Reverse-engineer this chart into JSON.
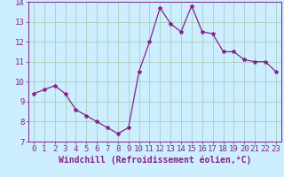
{
  "hours": [
    0,
    1,
    2,
    3,
    4,
    5,
    6,
    7,
    8,
    9,
    10,
    11,
    12,
    13,
    14,
    15,
    16,
    17,
    18,
    19,
    20,
    21,
    22,
    23
  ],
  "values": [
    9.4,
    9.6,
    9.8,
    9.4,
    8.6,
    8.3,
    8.0,
    7.7,
    7.4,
    7.7,
    10.5,
    12.0,
    13.7,
    12.9,
    12.5,
    13.8,
    12.5,
    12.4,
    11.5,
    11.5,
    11.1,
    11.0,
    11.0,
    10.5
  ],
  "line_color": "#882288",
  "marker": "*",
  "marker_size": 3,
  "bg_color": "#cceeff",
  "grid_color": "#aaccbb",
  "xlabel": "Windchill (Refroidissement éolien,°C)",
  "xlabel_color": "#882288",
  "ylim": [
    7,
    14
  ],
  "xlim": [
    -0.5,
    23.5
  ],
  "yticks": [
    7,
    8,
    9,
    10,
    11,
    12,
    13,
    14
  ],
  "xtick_labels": [
    "0",
    "1",
    "2",
    "3",
    "4",
    "5",
    "6",
    "7",
    "8",
    "9",
    "10",
    "11",
    "12",
    "13",
    "14",
    "15",
    "16",
    "17",
    "18",
    "19",
    "20",
    "21",
    "22",
    "23"
  ],
  "tick_color": "#882288",
  "label_fontsize": 6.5,
  "xlabel_fontsize": 7
}
